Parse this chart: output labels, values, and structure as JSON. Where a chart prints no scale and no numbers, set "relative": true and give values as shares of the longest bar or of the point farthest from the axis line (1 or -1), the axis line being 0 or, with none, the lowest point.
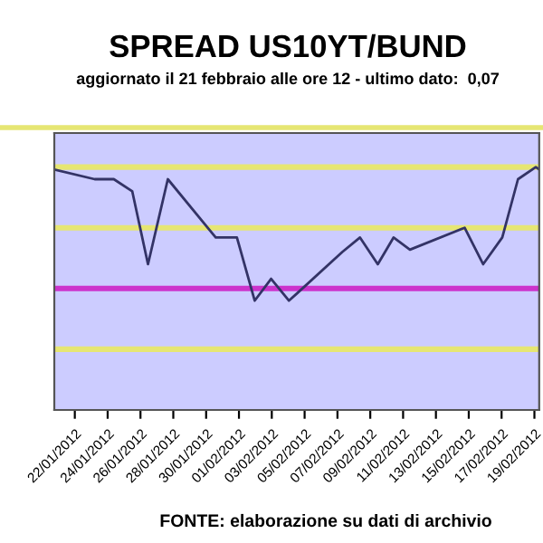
{
  "chart_data": {
    "type": "line",
    "title": "SPREAD US10YT/BUND",
    "subtitle": "aggiornato il 21 febbraio alle ore 12 - ultimo dato:  0,07",
    "annotations": [
      "FONTE: elaborazione su dati di archivio"
    ],
    "relative": true,
    "x": [
      "2012-01-20T18:00",
      "2012-01-23T05:00",
      "2012-01-24T09:00",
      "2012-01-25T12:00",
      "2012-01-26T11:00",
      "2012-01-27T16:00",
      "2012-01-30T14:00",
      "2012-01-31T21:00",
      "2012-02-01T23:00",
      "2012-02-02T23:00",
      "2012-02-04T01:00",
      "2012-02-04T13:00",
      "2012-02-07T07:00",
      "2012-02-08T09:00",
      "2012-02-09T11:00",
      "2012-02-10T10:00",
      "2012-02-11T10:00",
      "2012-02-14T18:00",
      "2012-02-15T21:00",
      "2012-02-17T01:00",
      "2012-02-18T00:00",
      "2012-02-19T02:00",
      "2012-02-19T07:00"
    ],
    "series": [
      {
        "color": "#333366",
        "values": [
          0.99,
          0.95,
          0.95,
          0.9,
          0.6,
          0.95,
          0.71,
          0.71,
          0.45,
          0.54,
          0.45,
          0.48,
          0.65,
          0.71,
          0.6,
          0.71,
          0.66,
          0.75,
          0.6,
          0.71,
          0.95,
          1,
          0.99
        ]
      }
    ],
    "xlim": [
      "2012-01-20T18:00",
      "2012-02-19T07:00"
    ],
    "xticks": [
      {
        "value": "2012-01-22",
        "label": "22/01/2012"
      },
      {
        "value": "2012-01-24",
        "label": "24/01/2012"
      },
      {
        "value": "2012-01-26",
        "label": "26/01/2012"
      },
      {
        "value": "2012-01-28",
        "label": "28/01/2012"
      },
      {
        "value": "2012-01-30",
        "label": "30/01/2012"
      },
      {
        "value": "2012-02-01",
        "label": "01/02/2012"
      },
      {
        "value": "2012-02-03",
        "label": "03/02/2012"
      },
      {
        "value": "2012-02-05",
        "label": "05/02/2012"
      },
      {
        "value": "2012-02-07",
        "label": "07/02/2012"
      },
      {
        "value": "2012-02-09",
        "label": "09/02/2012"
      },
      {
        "value": "2012-02-11",
        "label": "11/02/2012"
      },
      {
        "value": "2012-02-13",
        "label": "13/02/2012"
      },
      {
        "value": "2012-02-15",
        "label": "15/02/2012"
      },
      {
        "value": "2012-02-17",
        "label": "17/02/2012"
      },
      {
        "value": "2012-02-19",
        "label": "19/02/2012"
      }
    ],
    "ref_lines": [
      {
        "axis": "y",
        "value": 1.0,
        "color": "#e6e673"
      },
      {
        "axis": "y",
        "value": 0.75,
        "color": "#e6e673"
      },
      {
        "axis": "y",
        "value": 0.5,
        "color": "#cc33cc"
      },
      {
        "axis": "y",
        "value": 0.25,
        "color": "#e6e673"
      }
    ],
    "grid": false,
    "legend": false,
    "marker": "none",
    "line_style": "solid",
    "tick_labels": "x"
  }
}
